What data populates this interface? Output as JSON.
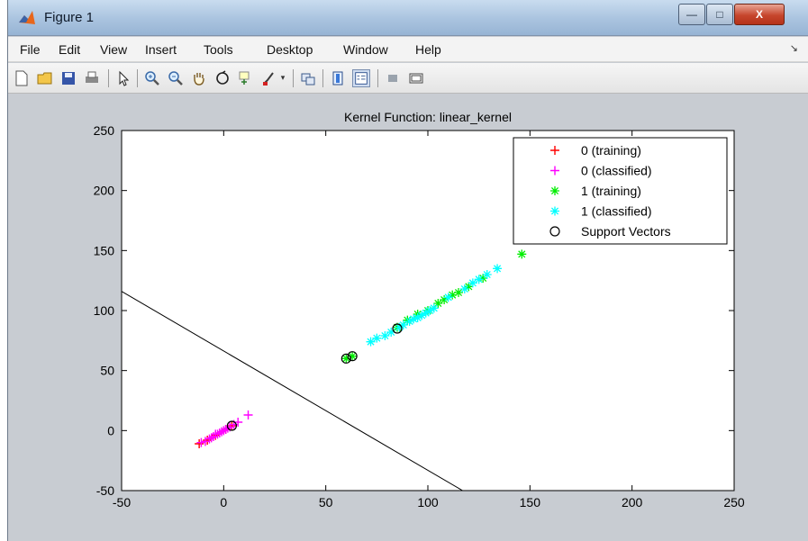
{
  "window": {
    "title": "Figure 1",
    "controls": {
      "minimize": "—",
      "maximize": "□",
      "close": "X"
    }
  },
  "menu": {
    "items": [
      "File",
      "Edit",
      "View",
      "Insert",
      "Tools",
      "Desktop",
      "Window",
      "Help"
    ]
  },
  "toolbar": {
    "icons": [
      "new-figure-icon",
      "open-file-icon",
      "save-icon",
      "print-icon",
      "pointer-icon",
      "zoom-in-icon",
      "zoom-out-icon",
      "pan-hand-icon",
      "rotate-3d-icon",
      "data-cursor-icon",
      "brush-icon",
      "brush-dropdown-icon",
      "link-plot-icon",
      "colorbar-icon",
      "legend-icon",
      "hide-plot-tools-icon",
      "show-plot-tools-icon"
    ]
  },
  "colors": {
    "class0_training": "#ff0000",
    "class0_classified": "#ff00ff",
    "class1_training": "#00ee00",
    "class1_classified": "#00ffff",
    "support_vectors": "#000000",
    "boundary": "#000000",
    "window_bg": "#c8ccd2"
  },
  "chart_data": {
    "type": "scatter",
    "title": "Kernel Function: linear_kernel",
    "xlabel": "",
    "ylabel": "",
    "xlim": [
      -50,
      250
    ],
    "ylim": [
      -50,
      250
    ],
    "xticks": [
      -50,
      0,
      50,
      100,
      150,
      200,
      250
    ],
    "yticks": [
      -50,
      0,
      50,
      100,
      150,
      200,
      250
    ],
    "grid": false,
    "legend_position": "top-right",
    "series": [
      {
        "name": "0 (training)",
        "marker": "+",
        "color": "#ff0000",
        "points": [
          [
            -12,
            -11
          ],
          [
            -8,
            -8
          ],
          [
            -4,
            -4
          ],
          [
            1,
            1
          ],
          [
            4,
            4
          ]
        ]
      },
      {
        "name": "0 (classified)",
        "marker": "+",
        "color": "#ff00ff",
        "points": [
          [
            -11,
            -10
          ],
          [
            -9,
            -9
          ],
          [
            -7,
            -7
          ],
          [
            -6,
            -6
          ],
          [
            -5,
            -5
          ],
          [
            -4,
            -3
          ],
          [
            -3,
            -3
          ],
          [
            -2,
            -2
          ],
          [
            -1,
            -1
          ],
          [
            0,
            0
          ],
          [
            1,
            1
          ],
          [
            2,
            2
          ],
          [
            3,
            3
          ],
          [
            5,
            5
          ],
          [
            7,
            7
          ],
          [
            12,
            13
          ]
        ]
      },
      {
        "name": "1 (training)",
        "marker": "*",
        "color": "#00ee00",
        "points": [
          [
            60,
            60
          ],
          [
            63,
            62
          ],
          [
            85,
            86
          ],
          [
            90,
            92
          ],
          [
            95,
            97
          ],
          [
            100,
            100
          ],
          [
            105,
            106
          ],
          [
            108,
            109
          ],
          [
            112,
            113
          ],
          [
            115,
            115
          ],
          [
            120,
            120
          ],
          [
            127,
            127
          ],
          [
            146,
            147
          ]
        ]
      },
      {
        "name": "1 (classified)",
        "marker": "*",
        "color": "#00ffff",
        "points": [
          [
            72,
            74
          ],
          [
            75,
            77
          ],
          [
            79,
            79
          ],
          [
            82,
            82
          ],
          [
            86,
            86
          ],
          [
            88,
            88
          ],
          [
            91,
            91
          ],
          [
            93,
            93
          ],
          [
            95,
            94
          ],
          [
            97,
            96
          ],
          [
            99,
            98
          ],
          [
            101,
            100
          ],
          [
            103,
            102
          ],
          [
            110,
            111
          ],
          [
            118,
            118
          ],
          [
            122,
            123
          ],
          [
            125,
            126
          ],
          [
            129,
            130
          ],
          [
            134,
            135
          ]
        ]
      },
      {
        "name": "Support Vectors",
        "marker": "o",
        "color": "#000000",
        "points": [
          [
            4,
            4
          ],
          [
            60,
            60
          ],
          [
            63,
            62
          ],
          [
            85,
            85
          ]
        ]
      }
    ],
    "decision_boundary": {
      "x1": -50,
      "y1": 116,
      "x2": 117,
      "y2": -50
    }
  }
}
